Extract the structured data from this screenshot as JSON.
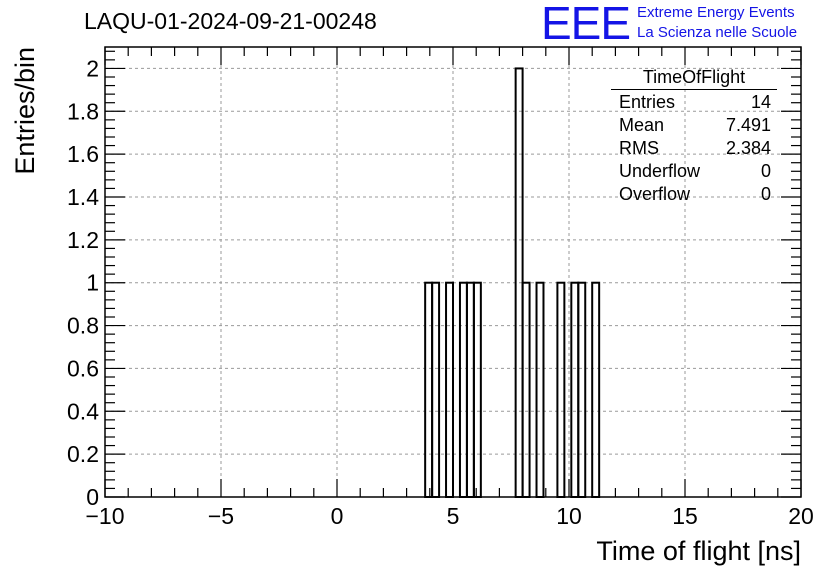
{
  "header": {
    "title": "LAQU-01-2024-09-21-00248",
    "logo_mark": "EEE",
    "logo_line1": "Extreme Energy Events",
    "logo_line2": "La Scienza nelle Scuole",
    "logo_color": "#1414e6"
  },
  "stats_box": {
    "title": "TimeOfFlight",
    "rows": [
      {
        "label": "Entries",
        "value": "14"
      },
      {
        "label": "Mean",
        "value": "7.491"
      },
      {
        "label": "RMS",
        "value": "2.384"
      },
      {
        "label": "Underflow",
        "value": "0"
      },
      {
        "label": "Overflow",
        "value": "0"
      }
    ]
  },
  "chart_data": {
    "type": "bar",
    "style": "step-histogram",
    "xlabel": "Time of flight [ns]",
    "ylabel": "Entries/bin",
    "xlim": [
      -10,
      20
    ],
    "ylim": [
      0,
      2.1
    ],
    "grid": true,
    "x_ticks": [
      -10,
      -5,
      0,
      5,
      10,
      15,
      20
    ],
    "x_tick_labels": [
      "−10",
      "−5",
      "0",
      "5",
      "10",
      "15",
      "20"
    ],
    "y_ticks": [
      0,
      0.2,
      0.4,
      0.6,
      0.8,
      1,
      1.2,
      1.4,
      1.6,
      1.8,
      2
    ],
    "y_tick_labels": [
      "0",
      "0.2",
      "0.4",
      "0.6",
      "0.8",
      "1",
      "1.2",
      "1.4",
      "1.6",
      "1.8",
      "2"
    ],
    "bin_width": 0.3,
    "bins": [
      {
        "x0": 3.8,
        "value": 1
      },
      {
        "x0": 4.1,
        "value": 1
      },
      {
        "x0": 4.7,
        "value": 1
      },
      {
        "x0": 5.3,
        "value": 1
      },
      {
        "x0": 5.6,
        "value": 1
      },
      {
        "x0": 5.9,
        "value": 1
      },
      {
        "x0": 7.7,
        "value": 2
      },
      {
        "x0": 8.0,
        "value": 1
      },
      {
        "x0": 8.6,
        "value": 1
      },
      {
        "x0": 9.5,
        "value": 1
      },
      {
        "x0": 10.1,
        "value": 1
      },
      {
        "x0": 10.4,
        "value": 1
      },
      {
        "x0": 11.0,
        "value": 1
      }
    ],
    "line_color": "#000000"
  }
}
